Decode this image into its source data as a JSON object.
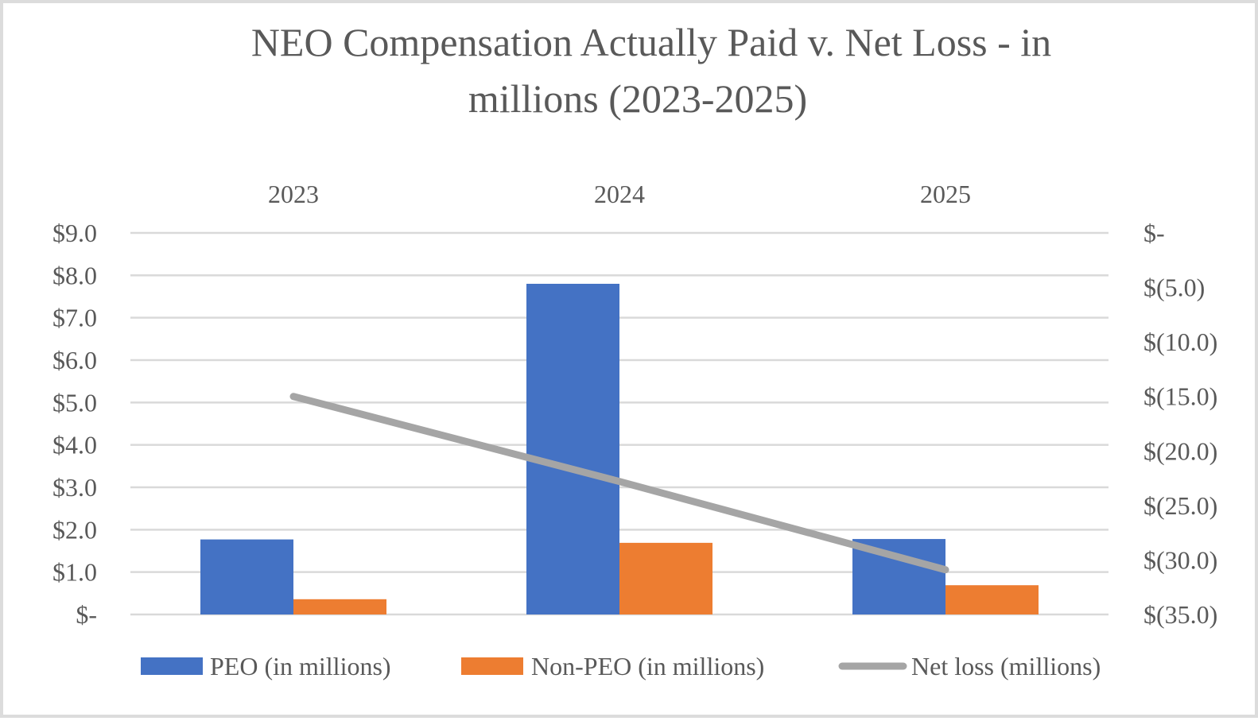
{
  "chart_data": {
    "type": "bar",
    "title_lines": [
      "NEO Compensation Actually Paid v. Net Loss - in",
      "millions (2023-2025)"
    ],
    "categories": [
      "2023",
      "2024",
      "2025"
    ],
    "series": [
      {
        "name": "PEO (in millions)",
        "kind": "bar",
        "axis": "left",
        "color": "#4472c4",
        "values": [
          1.77,
          7.8,
          1.78
        ]
      },
      {
        "name": "Non-PEO (in millions)",
        "kind": "bar",
        "axis": "left",
        "color": "#ed7d31",
        "values": [
          0.36,
          1.69,
          0.69
        ]
      },
      {
        "name": "Net loss (millions)",
        "kind": "line",
        "axis": "right",
        "color": "#a5a5a5",
        "values": [
          -15.0,
          -22.8,
          -30.9
        ]
      }
    ],
    "left_axis": {
      "min": 0,
      "max": 9,
      "ticks": [
        0,
        1,
        2,
        3,
        4,
        5,
        6,
        7,
        8,
        9
      ],
      "tick_labels": [
        "$-",
        "$1.0",
        "$2.0",
        "$3.0",
        "$4.0",
        "$5.0",
        "$6.0",
        "$7.0",
        "$8.0",
        "$9.0"
      ]
    },
    "right_axis": {
      "min": -35,
      "max": 0,
      "ticks": [
        0,
        -5,
        -10,
        -15,
        -20,
        -25,
        -30,
        -35
      ],
      "tick_labels": [
        "$-",
        "$(5.0)",
        "$(10.0)",
        "$(15.0)",
        "$(20.0)",
        "$(25.0)",
        "$(30.0)",
        "$(35.0)"
      ]
    },
    "category_axis_position": "top",
    "grid": true,
    "legend": "bottom"
  }
}
